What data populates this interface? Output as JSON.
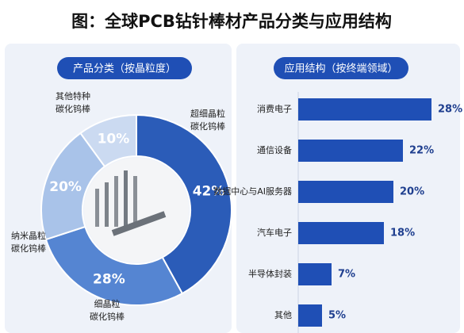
{
  "title": "图：全球PCB钻针棒材产品分类与应用结构",
  "chart_data": [
    {
      "type": "pie",
      "title": "产品分类（按晶粒度）",
      "categories": [
        "超细晶粒碳化钨棒",
        "细晶粒碳化钨棒",
        "纳米晶粒碳化钨棒",
        "其他特种碳化钨棒"
      ],
      "values": [
        42,
        28,
        20,
        10
      ],
      "value_labels": [
        "42%",
        "28%",
        "20%",
        "10%"
      ],
      "colors": [
        "#2b5cb8",
        "#5585d2",
        "#a9c3e9",
        "#cbdaf1"
      ]
    },
    {
      "type": "bar",
      "title": "应用结构（按终端领域）",
      "categories": [
        "消费电子",
        "通信设备",
        "数据中心与AI服务器",
        "汽车电子",
        "半导体封装",
        "其他"
      ],
      "values": [
        28,
        22,
        20,
        18,
        7,
        5
      ],
      "value_labels": [
        "28%",
        "22%",
        "20%",
        "18%",
        "7%",
        "5%"
      ],
      "color": "#1f4fb5",
      "orientation": "horizontal"
    }
  ]
}
